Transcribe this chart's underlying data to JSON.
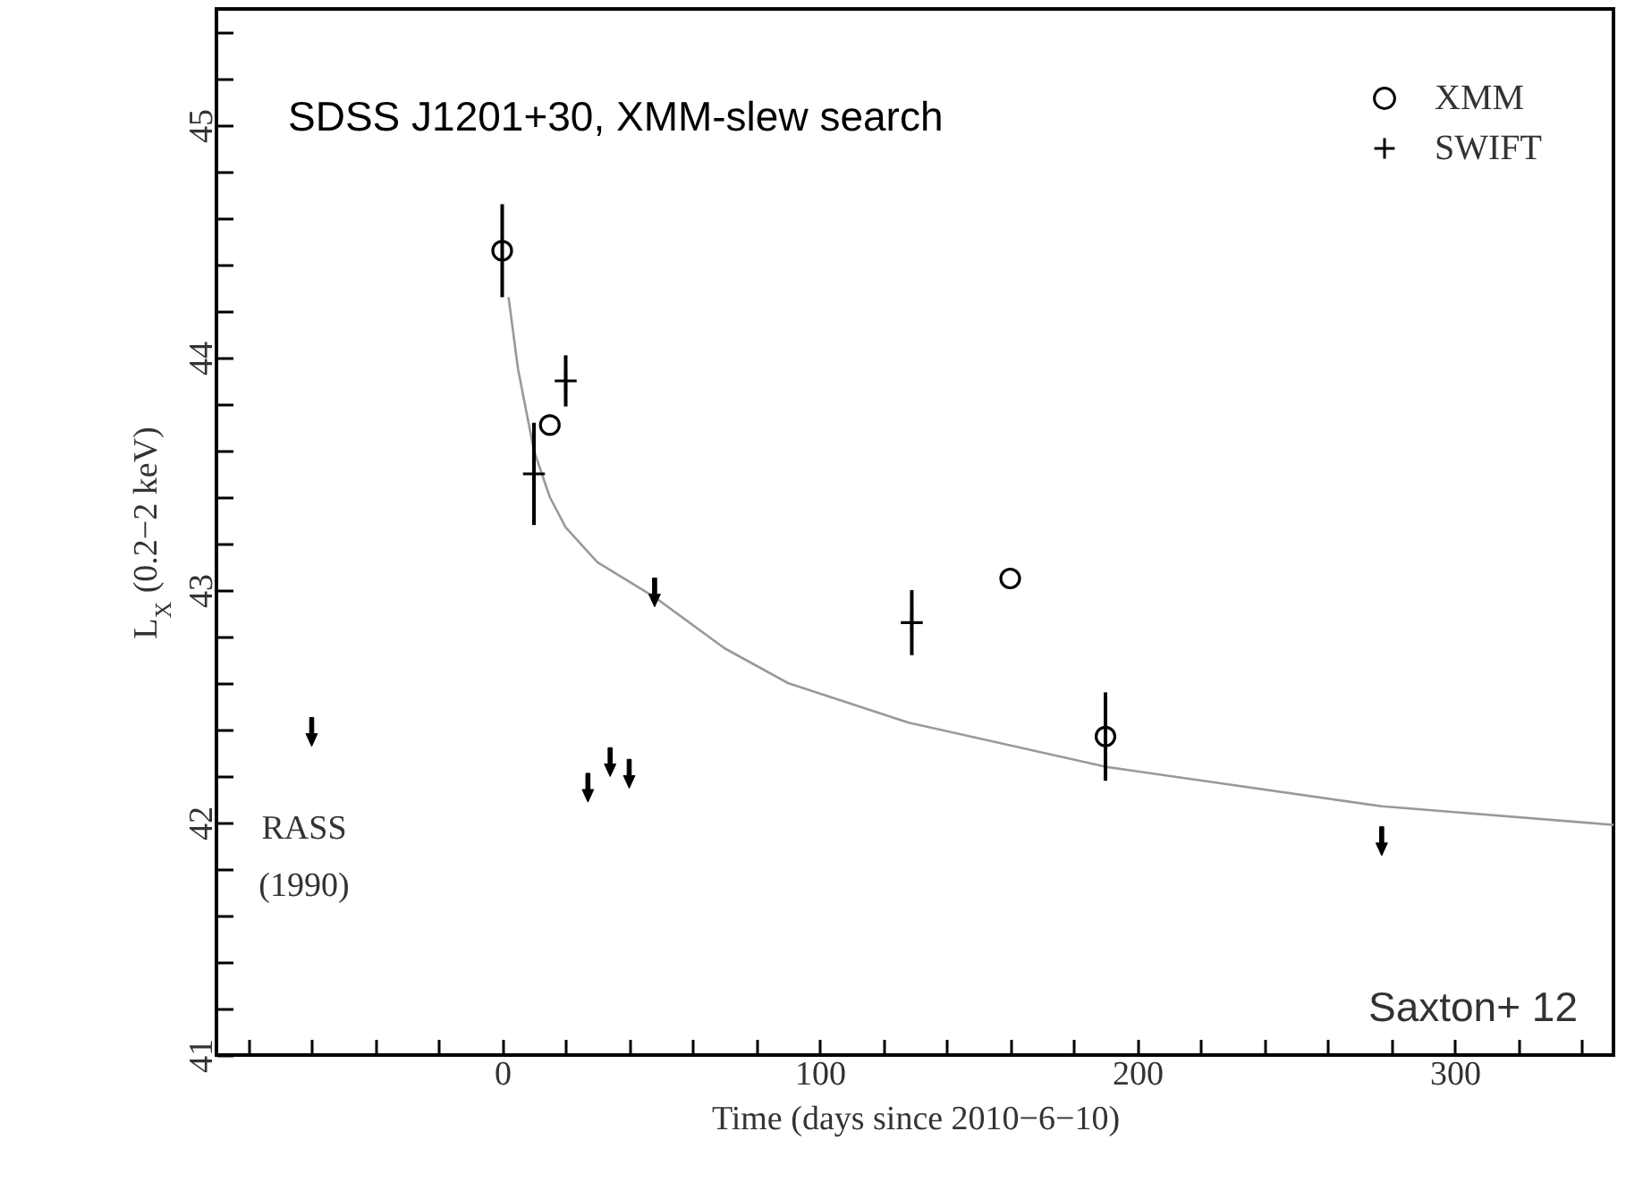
{
  "chart_data": {
    "type": "scatter",
    "title": "SDSS J1201+30, XMM-slew search",
    "xlabel": "Time (days since 2010−6−10)",
    "ylabel": "L$_{X}$ (0.2−2 keV)",
    "xlim": [
      -90,
      350
    ],
    "ylim": [
      41,
      45.5
    ],
    "xticks": [
      {
        "value": -80,
        "label": null
      },
      {
        "value": -60,
        "label": null
      },
      {
        "value": -40,
        "label": null
      },
      {
        "value": -20,
        "label": null
      },
      0,
      {
        "value": 20,
        "label": null
      },
      {
        "value": 40,
        "label": null
      },
      {
        "value": 60,
        "label": null
      },
      {
        "value": 80,
        "label": null
      },
      100,
      {
        "value": 120,
        "label": null
      },
      {
        "value": 140,
        "label": null
      },
      {
        "value": 160,
        "label": null
      },
      {
        "value": 180,
        "label": null
      },
      200,
      {
        "value": 220,
        "label": null
      },
      {
        "value": 240,
        "label": null
      },
      {
        "value": 260,
        "label": null
      },
      {
        "value": 280,
        "label": null
      },
      300,
      {
        "value": 320,
        "label": null
      },
      {
        "value": 340,
        "label": null
      }
    ],
    "yticks": [
      41,
      {
        "value": 41.2,
        "label": null
      },
      {
        "value": 41.4,
        "label": null
      },
      {
        "value": 41.6,
        "label": null
      },
      {
        "value": 41.8,
        "label": null
      },
      42,
      {
        "value": 42.2,
        "label": null
      },
      {
        "value": 42.4,
        "label": null
      },
      {
        "value": 42.6,
        "label": null
      },
      {
        "value": 42.8,
        "label": null
      },
      43,
      {
        "value": 43.2,
        "label": null
      },
      {
        "value": 43.4,
        "label": null
      },
      {
        "value": 43.6,
        "label": null
      },
      {
        "value": 43.8,
        "label": null
      },
      44,
      {
        "value": 44.2,
        "label": null
      },
      {
        "value": 44.4,
        "label": null
      },
      {
        "value": 44.6,
        "label": null
      },
      {
        "value": 44.8,
        "label": null
      },
      45,
      {
        "value": 45.2,
        "label": null
      },
      {
        "value": 45.4,
        "label": null
      }
    ],
    "grid": false,
    "legend": "top right",
    "annotations": [
      "RASS\n(1990)",
      "Saxton+ 12"
    ],
    "series": [
      {
        "type": "line",
        "color": "#999999",
        "x": [
          2,
          5,
          10,
          15,
          20,
          30,
          48,
          70,
          90,
          128,
          190,
          277,
          350
        ],
        "values": [
          44.26,
          43.95,
          43.6,
          43.4,
          43.27,
          43.12,
          42.97,
          42.75,
          42.6,
          42.43,
          42.24,
          42.07,
          41.99
        ]
      },
      {
        "name": "XMM",
        "type": "scatter",
        "marker": "circle",
        "color": "#000000",
        "x": [
          0,
          15,
          160,
          190
        ],
        "values": [
          44.46,
          43.71,
          43.05,
          42.37
        ],
        "errors": [
          0.2,
          null,
          null,
          0.19
        ]
      },
      {
        "name": "SWIFT",
        "type": "scatter",
        "marker": "cross",
        "color": "#000000",
        "x": [
          10,
          20,
          129
        ],
        "values": [
          43.5,
          43.9,
          42.86
        ],
        "errors": [
          0.22,
          0.11,
          0.14
        ]
      },
      {
        "type": "scatter",
        "marker": "triangle",
        "color": "#000000",
        "x": [
          -60,
          27,
          34,
          40,
          48,
          277
        ],
        "values": [
          42.39,
          42.15,
          42.26,
          42.21,
          42.99,
          41.92
        ]
      }
    ]
  }
}
